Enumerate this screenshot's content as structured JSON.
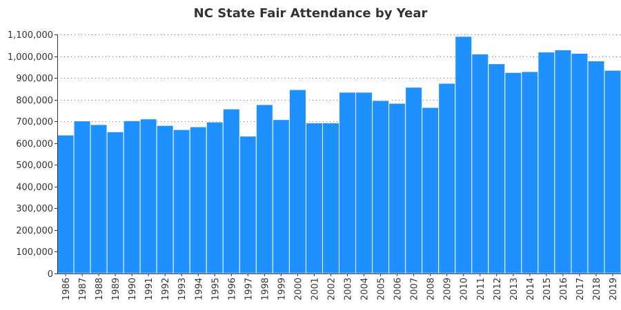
{
  "chart_data": {
    "type": "bar",
    "title": "NC State Fair Attendance by Year",
    "xlabel": "",
    "ylabel": "",
    "categories": [
      "1986",
      "1987",
      "1988",
      "1989",
      "1990",
      "1991",
      "1992",
      "1993",
      "1994",
      "1995",
      "1996",
      "1997",
      "1998",
      "1999",
      "2000",
      "2001",
      "2002",
      "2003",
      "2004",
      "2005",
      "2006",
      "2007",
      "2008",
      "2009",
      "2010",
      "2011",
      "2012",
      "2013",
      "2014",
      "2015",
      "2016",
      "2017",
      "2018",
      "2019"
    ],
    "values": [
      637000,
      702000,
      685000,
      652000,
      703000,
      711000,
      681000,
      662000,
      675000,
      697000,
      757000,
      632000,
      777000,
      708000,
      846000,
      693000,
      693000,
      834000,
      834000,
      796000,
      783000,
      857000,
      764000,
      875000,
      1091000,
      1010000,
      965000,
      925000,
      929000,
      1019000,
      1029000,
      1013000,
      978000,
      935000
    ],
    "ylim": [
      0,
      1100000
    ],
    "yticks": [
      0,
      100000,
      200000,
      300000,
      400000,
      500000,
      600000,
      700000,
      800000,
      900000,
      1000000,
      1100000
    ],
    "ytick_labels": [
      "0",
      "100,000",
      "200,000",
      "300,000",
      "400,000",
      "500,000",
      "600,000",
      "700,000",
      "800,000",
      "900,000",
      "1,000,000",
      "1,100,000"
    ],
    "grid": true,
    "grid_style": "dotted",
    "bar_color": "#1e90ff",
    "bar_edge_color": "#ffffff",
    "axis_color": "#333333"
  }
}
